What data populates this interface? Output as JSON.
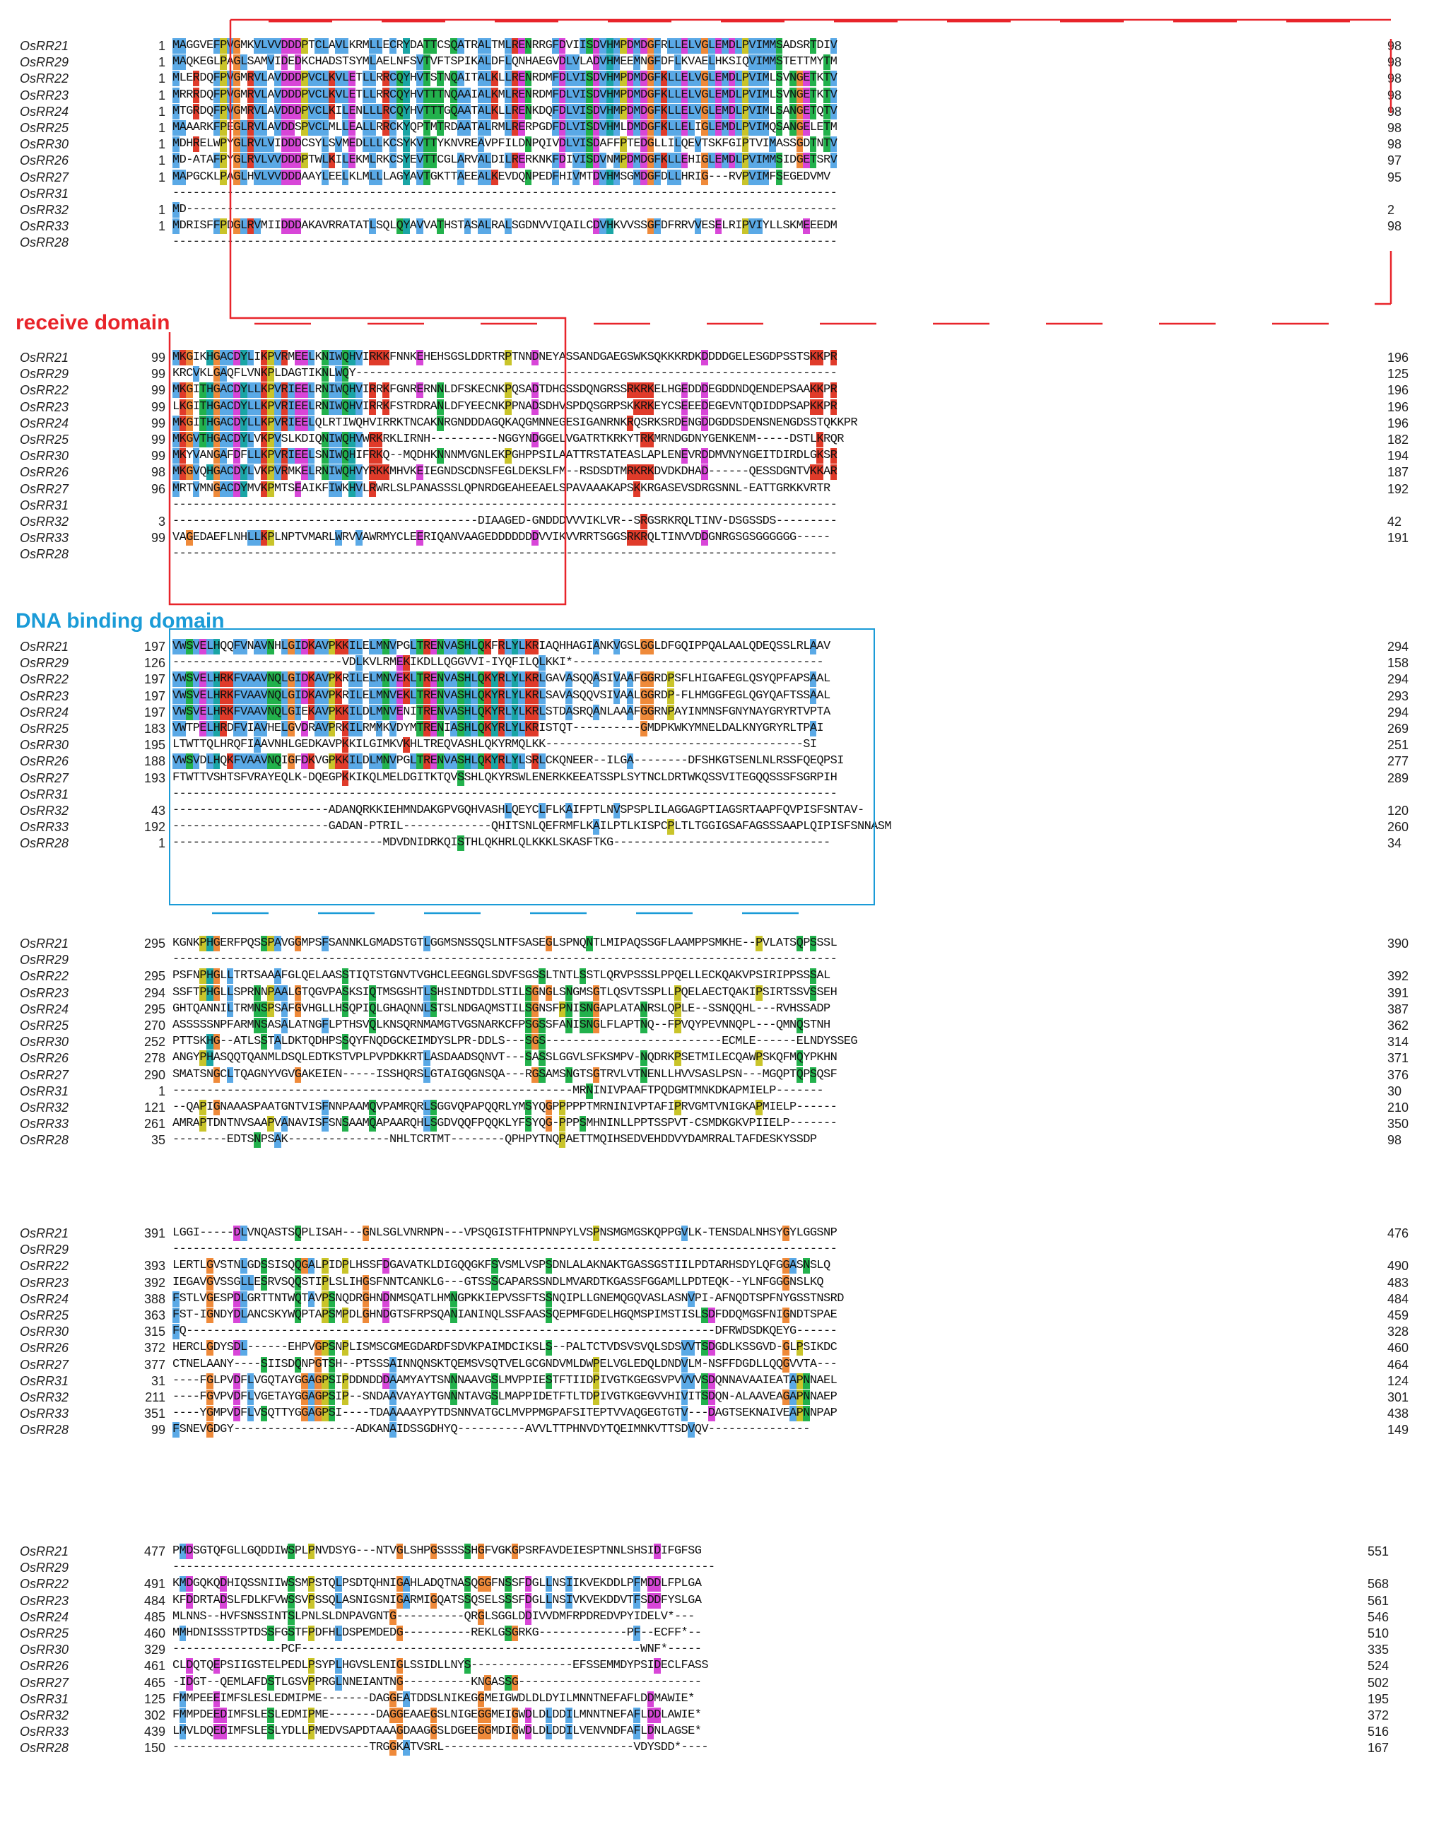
{
  "colors": {
    "receive_domain": "#e8242a",
    "dna_binding_domain": "#1a9bd7",
    "residue_blue": "#5aa9e6",
    "residue_red": "#e03b2a",
    "residue_orange": "#ef8a3a",
    "residue_green": "#22b14c",
    "residue_teal": "#1aa5a5",
    "residue_magenta": "#d846d8",
    "residue_yellow": "#c9c42a"
  },
  "labels": {
    "receive_domain": "receive domain",
    "dna_binding_domain": "DNA binding domain"
  },
  "blocks": [
    {
      "rows": [
        {
          "name": "OsRR21",
          "start": "1",
          "seq": "MAGGVEFPVGMKVLVVDDDPTCLAVLKRMLLECRYDATTCSQATRALTMLRENRRGFDVIISDVHMPDMDGFRLLELVGLEMDLPVIMMSADSRTDIV",
          "end": "98"
        },
        {
          "name": "OsRR29",
          "start": "1",
          "seq": "MAQKEGLPAGLSAMVIDEDKCHADSTSYMLAELNFSVTVFTSPIKALDFLQNHAEGVDLVLADVHMEEMNGFDFLKVAELHKSIQVIMMSTETTMYTM",
          "end": "98"
        },
        {
          "name": "OsRR22",
          "start": "1",
          "seq": "MLERDQFPVGMRVLAVDDDPVCLKVLETLLRRCQYHVTSTNQAITALKLLRENRDMFDLVISDVHMPDMDGFKLLELVGLEMDLPVIMLSVNGETKTV",
          "end": "98"
        },
        {
          "name": "OsRR23",
          "start": "1",
          "seq": "MRRRDQFPVGMRVLAVDDDPVCLKVLETLLRRCQYHVTTTNQAAIALKMLRENRDMFDLVISDVHMPDMDGFKLLELVGLEMDLPVIMLSVNGETKTV",
          "end": "98"
        },
        {
          "name": "OsRR24",
          "start": "1",
          "seq": "MTGRDQFPVGMRVLAVDDDPVCLKILENLLLRCQYHVTTTGQAATALKLLRENKDQFDLVISDVHMPDMDGFKLLELVGLEMDLPVIMLSANGETQTV",
          "end": "98"
        },
        {
          "name": "OsRR25",
          "start": "1",
          "seq": "MAAARKFPEGLRVLAVDDSPVCLMLLEALLRRCKYQPTMTRDAATALRMLRERPGDFDLVISDVHMLDMDGFKLLELIGLEMDLPVIMQSANGELETM",
          "end": "98"
        },
        {
          "name": "OsRR30",
          "start": "1",
          "seq": "MDHRELWPYGLRVLVIDDDCSYLSVMEDLLLKCSYKVTTYKNVREAVPFILDNPQIVDLVISDAFFPTEDGLLILQEVTSKFGIPTVIMASSGDTNTV",
          "end": "98"
        },
        {
          "name": "OsRR26",
          "start": "1",
          "seq": "MD-ATAFPYGLRVLVVDDDPTWLKILEKMLRKCSYEVTTCGLARVALDILRERKNKFDIVISDVNMPDMDGFKLLEHIGLEMDLPVIMMSIDGETSRV",
          "end": "97"
        },
        {
          "name": "OsRR27",
          "start": "1",
          "seq": "MAPGCKLPAGLHVLVVDDDAAYLEELKLMLLLAGYAVTGKTTAEEALKEVDQNPEDFHIVMTDVHMSGMDGFDLLHRIG---RVPVIMFSEGEDVMV",
          "end": "95"
        },
        {
          "name": "OsRR31",
          "start": "",
          "seq": "--------------------------------------------------------------------------------------------------",
          "end": ""
        },
        {
          "name": "OsRR32",
          "start": "1",
          "seq": "MD------------------------------------------------------------------------------------------------",
          "end": "2"
        },
        {
          "name": "OsRR33",
          "start": "1",
          "seq": "MDRISFFPDGLRVMIIDDDAKAVRRATATLSQLQYAVVATHSTASALRALSGDNVVIQAILCDVHKVVSSGFDFRRVVESELRIPVIYLLSKMEEEDM",
          "end": "98"
        },
        {
          "name": "OsRR28",
          "start": "",
          "seq": "--------------------------------------------------------------------------------------------------",
          "end": ""
        }
      ]
    },
    {
      "rows": [
        {
          "name": "OsRR21",
          "start": "99",
          "seq": "MKGIKHGACDYLIKPVRMEELKNIWQHVIRKKFNNKEHEHSGSLDDRTRPTNNDNEYASSANDGAEGSWKSQKKKRDKDDDDGELESGDPSSTSKKPR",
          "end": "196"
        },
        {
          "name": "OsRR29",
          "start": "99",
          "seq": "KRCVKLGAQFLVNKPLDAGTIKNLWQY-----------------------------------------------------------------------",
          "end": "125"
        },
        {
          "name": "OsRR22",
          "start": "99",
          "seq": "MKGITHGACDYLLKPVRIEELRNIWQHVIRRKFGNRERNNLDFSKECNKPQSADTDHGSSDQNGRSSRKRKELHGEDDDEGDDNDQENDEPSAAKKPR",
          "end": "196"
        },
        {
          "name": "OsRR23",
          "start": "99",
          "seq": "LKGITHGACDYLLKPVRIEELRNIWQHVIRRKFSTRDRANLDFYEECNKPPNADSDHVSPDQSGRPSKKRKEYCSEEEDEGEVNTQDIDDPSAPKKPR",
          "end": "196"
        },
        {
          "name": "OsRR24",
          "start": "99",
          "seq": "MKGITHGACDYLLKPVRIEELQLRTIWQHVIRRKTNCAKNRGNDDDAGQKAQGMNNEGESIGANRNKRQSRKSRDENGDDGDDSDENSNENGDSSTQKKPR",
          "end": "196"
        },
        {
          "name": "OsRR25",
          "start": "99",
          "seq": "MKGVTHGACDYLVKPVSLKDIQNIWQHVWRKRKLIRNH----------NGGYNDGGELVGATRTKRKYTRKMRNDGDNYGENKENM-----DSTLKRQR",
          "end": "182"
        },
        {
          "name": "OsRR30",
          "start": "99",
          "seq": "MKYVANGAFDFLLKPVRIEELSNIWQHIFRKQ--MQDHKNNNMVGNLEKPGHPPSILAATTRSTATEASLAPLENEVRDDMVNYNGEITDIRDLGKSR",
          "end": "194"
        },
        {
          "name": "OsRR26",
          "start": "98",
          "seq": "MKGVQHGACDYLVKPVRMKELRNIWQHVYRKKMHVKEIEGNDSCDNSFEGLDEKSLFM--RSDSDTMRKRKDVDKDHAD------QESSDGNTVKKAR",
          "end": "187"
        },
        {
          "name": "OsRR27",
          "start": "96",
          "seq": "MRTVMNGACDYMVKPMTSEAIKFIWKHVLRWRLSLPANASSSLQPNRDGEAHEEAELSPAVAAAKAPSKKRGASEVSDRGSNNL-EATTGRKKVRTR",
          "end": "192"
        },
        {
          "name": "OsRR31",
          "start": "",
          "seq": "--------------------------------------------------------------------------------------------------",
          "end": ""
        },
        {
          "name": "OsRR32",
          "start": "3",
          "seq": "---------------------------------------------DIAAGED-GNDDDVVVIKLVR--SRGSRKRQLTINV-DSGSSDS---------",
          "end": "42"
        },
        {
          "name": "OsRR33",
          "start": "99",
          "seq": "VAGEDAEFLNHLLKPLNPTVMARLWRVVAWRMYCLEERIQANVAAGEDDDDDDDVVIKVVRRTSGGSRKRQLTINVVDDGNRGSGSGGGGGG-----",
          "end": "191"
        },
        {
          "name": "OsRR28",
          "start": "",
          "seq": "--------------------------------------------------------------------------------------------------",
          "end": ""
        }
      ]
    },
    {
      "rows": [
        {
          "name": "OsRR21",
          "start": "197",
          "seq": "VWSVELHQQFVNAVNHLGIDKAVPKKILELMNVPGLTRENVASHLQKFRLYLKRIAQHHAGIANKVGSLGGLDFGQIPPQALAALQDEQSSLRLAAV",
          "end": "294"
        },
        {
          "name": "OsRR29",
          "start": "126",
          "seq": "-------------------------VDLKVLRMEKIKDLLQGGVVI-IYQFILQLKKI*-------------------------------------",
          "end": "158"
        },
        {
          "name": "OsRR22",
          "start": "197",
          "seq": "VWSVELHRKFVAAVNQLGIDKAVPKRILELMNVEKLTRENVASHLQKYRLYLKRLGAVASQQASIVAAFGGRDPSFLHIGAFEGLQSYQPFAPSAAL",
          "end": "294"
        },
        {
          "name": "OsRR23",
          "start": "197",
          "seq": "VWSVELHRKFVAAVNQLGIDKAVPKRILELMNVEKLTRENVASHLQKYRLYLKRLSAVASQQVSIVAALGGRDP-FLHMGGFEGLQGYQAFTSSAAL",
          "end": "293"
        },
        {
          "name": "OsRR24",
          "start": "197",
          "seq": "VWSVELHRKFVAAVNQLGIEKAVPKKILDLMNVENITRENVASHLQKYRLYLKRLSTDASRQANLAAAFGGRNPAYINMNSFGNYNAYGRYRTVPTA",
          "end": "294"
        },
        {
          "name": "OsRR25",
          "start": "183",
          "seq": "VWTPELHRDFVIAVHELGVDRAVPRKILRMMKVDYMTRENIASHLQKYRLYLKRISTQT----------GMDPKWKYMNELDALKNYGRYRLTPAI",
          "end": "269"
        },
        {
          "name": "OsRR30",
          "start": "195",
          "seq": "LTWTTQLHRQFIAAVNHLGEDKAVPKKILGIMKVKHLTREQVASHLQKYRMQLKK--------------------------------------SI",
          "end": "251"
        },
        {
          "name": "OsRR26",
          "start": "188",
          "seq": "VWSVDLHQKFVAAVNQIGFDKVGPKKILDLMNVPGLTRENVASHLQKYRLYLSRLCKQNEER--ILGA--------DFSHKGTSENLNLRSSFQEQPSI",
          "end": "277"
        },
        {
          "name": "OsRR27",
          "start": "193",
          "seq": "FTWTTVSHTSFVRAYEQLK-DQEGPKKIKQLMELDGITKTQVSSHLQKYRSWLENERKKEEATSSPLSYTNCLDRTWKQSSVITEGQQSSSFSGRPIH",
          "end": "289"
        },
        {
          "name": "OsRR31",
          "start": "",
          "seq": "--------------------------------------------------------------------------------------------------",
          "end": ""
        },
        {
          "name": "OsRR32",
          "start": "43",
          "seq": "-----------------------ADANQRKKIEHMNDAKGPVGQHVASHLQEYCLFLKAIFPTLNVSPSPLILAGGAGPTIAGSRTAAPFQVPISFSNTAV-",
          "end": "120"
        },
        {
          "name": "OsRR33",
          "start": "192",
          "seq": "-----------------------GADAN-PTRIL-------------QHITSNLQEFRMFLKAILPTLKISPCPLTLTGGIGSAFAGSSSAAPLQIPISFSNNASM",
          "end": "260"
        },
        {
          "name": "OsRR28",
          "start": "1",
          "seq": "-------------------------------MDVDNIDRKQISTHLQKHRLQLKKKLSKASFTKG--------------------------------",
          "end": "34"
        }
      ]
    },
    {
      "rows": [
        {
          "name": "OsRR21",
          "start": "295",
          "seq": "KGNKPHGERFPQSSPAVGGMPSFSANNKLGMADSTGTLGGMSNSSQSLNTFSASEGLSPNQNTLMIPAQSSGFLAAMPPSMKHE--PVLATSQPSSSL",
          "end": "390"
        },
        {
          "name": "OsRR29",
          "start": "",
          "seq": "--------------------------------------------------------------------------------------------------",
          "end": ""
        },
        {
          "name": "OsRR22",
          "start": "295",
          "seq": "PSFNPHGLLTRTSAAAFGLQELAASSTIQTSTGNVTVGHCLEEGNGLSDVFSGSSLTNTLSSTLQRVPSSSLPPQELLECKQAKVPSIRIPPSSSAL",
          "end": "392"
        },
        {
          "name": "OsRR23",
          "start": "294",
          "seq": "SSFTPHGLLSPRNNPAALGTQGVPASKSIQTMSGSHTLSHSINDTDDLSTILSGNGLSNGMSGTLQSVTSSPLLPQELAECTQAKIPSIRTSSVSSEH",
          "end": "391"
        },
        {
          "name": "OsRR24",
          "start": "295",
          "seq": "GHTQANNILTRMNSPSAFGVHGLLHSQPIQLGHAQNNLSTSLNDGAQMSTILSGNSFPNISNGAPLATANRSLQPLE--SSNQQHL---RVHSSADP",
          "end": "387"
        },
        {
          "name": "OsRR25",
          "start": "270",
          "seq": "ASSSSSNPFARMNSASALATNGFLPTHSVQLKNSQRNMAMGTVGSNARKCFPSGSSFANISNGLFLAPTNQ--FPVQYPEVNNQPL---QMNQSTNH",
          "end": "362"
        },
        {
          "name": "OsRR30",
          "start": "252",
          "seq": "PTTSKHG--ATLSSTALDKTQDHPSSQYFNQDGCKEIMDYSLPR-DDLS---SGS--------------------------ECMLE------ELNDYSSEG",
          "end": "314"
        },
        {
          "name": "OsRR26",
          "start": "278",
          "seq": "ANGYPHASQQTQANMLDSQLEDTKSTVPLPVPDKKRTLASDAADSQNVT---SASSLGGVLSFKSMPV-NQDRKPSETMILECQAWPSKQFMQYPKHN",
          "end": "371"
        },
        {
          "name": "OsRR27",
          "start": "290",
          "seq": "SMATSNGCLTQAGNYVGVGAKEIEN-----ISSHQRSLGTAIGQGNSQA---RGSAMSNGTSGTRVLVTNENLLHVVSASLPSN---MGQPTQPSQSF",
          "end": "376"
        },
        {
          "name": "OsRR31",
          "start": "1",
          "seq": "-----------------------------------------------------------MRNINIVPAAFTPQDGMTMNKDKAPMIELP-------",
          "end": "30"
        },
        {
          "name": "OsRR32",
          "start": "121",
          "seq": "--QAPIGNAAASPAATGNTVISFNNPAAMQVPAMRQRLSGGVQPAPQQRLYMSYQGPPPPPTMRNINIVPTAFIPRVGMTVNIGKAPMIELP------",
          "end": "210"
        },
        {
          "name": "OsRR33",
          "start": "261",
          "seq": "AMRAPTDNTNVSAAPVANAVISFSNSAAMQAPAARQHLSGDVQQFPQQKLYFSYQG-PPPSMHNINLLPPTSSPVT-CSMDKGKVPIIELP-------",
          "end": "350"
        },
        {
          "name": "OsRR28",
          "start": "35",
          "seq": "--------EDTSNPSAK---------------NHLTCRTMT--------QPHPYTNQPAETTMQIHSEDVEHDDVYDAMRRALTAFDESKYSSDP",
          "end": "98"
        }
      ]
    },
    {
      "rows": [
        {
          "name": "OsRR21",
          "start": "391",
          "seq": "LGGI-----DLVNQASTSQPLISAH---GNLSGLVNRNPN---VPSQGISTFHTPNNPYLVSPNSMGMGSKQPPGVLK-TENSDALNHSYGYLGGSNP",
          "end": "476"
        },
        {
          "name": "OsRR29",
          "start": "",
          "seq": "--------------------------------------------------------------------------------------------------",
          "end": ""
        },
        {
          "name": "OsRR22",
          "start": "393",
          "seq": "LERTLGVSTNLGDSSISQQGALPIDPLHSSFDGAVATKLDIGQQGKFSVSMLVSPSDNLALAKNAKTGASSGSTIILPDTARHSDYLQFGGASNSLQ",
          "end": "490"
        },
        {
          "name": "OsRR23",
          "start": "392",
          "seq": "IEGAVGVSSGLLESRVSQQSTIPLSLIHGSFNNTCANKLG---GTSSSCAPARSSNDLMVARDTKGASSFGGAMLLPDTEQK--YLNFGGGNSLKQ",
          "end": "483"
        },
        {
          "name": "OsRR24",
          "start": "388",
          "seq": "FSTLVGESPDLGRTTNTWQTAVPSNQDRGHNDNMSQATLHMNGPKKIEPVSSFTSSNQIPLLGNEMQGQVASLASNVPI-AFNQDTSPFNYGSSTNSRD",
          "end": "484"
        },
        {
          "name": "OsRR25",
          "start": "363",
          "seq": "FST-IGNDYDLANCSKYWQPTAPSMPDLGHNDGTSFRPSQANIANINQLSSFAASSQEPMFGDELHGQMSPIMSTISLSDFDDQMGSFNIGNDTSPAE",
          "end": "459"
        },
        {
          "name": "OsRR30",
          "start": "315",
          "seq": "FQ------------------------------------------------------------------------------DFRWDSDKQEYG------",
          "end": "328"
        },
        {
          "name": "OsRR26",
          "start": "372",
          "seq": "HERCLGDYSDL------EHPVGPSNPLISMSCGMEGDARDFSDVKPAIMDCIKSLS--PALTCTVDSVSVQLSDSVVTSDGDLKSSGVD-GLPSIKDC",
          "end": "460"
        },
        {
          "name": "OsRR27",
          "start": "377",
          "seq": "CTNELAANY----SIISDQNPGTSH--PTSSSAINNQNSKTQEMSVSQTVELGCGNDVMLDWPELVGLEDQLDNDVLM-NSFFDGDLLQQGVVTA---",
          "end": "464"
        },
        {
          "name": "OsRR31",
          "start": "31",
          "seq": "----FGLPVDFLVGQTAYGGAGPSIPDDNDDDAAMYAYTSNNNAAVGSLMVPPIESTFTIIDPIVGTKGEGSVPVVVVSDQNNAVAAIEATAPNNAEL",
          "end": "124"
        },
        {
          "name": "OsRR32",
          "start": "211",
          "seq": "----FGVPVDFLVGETAYGGAGPSIP--SNDAAVAYAYTGNNNTAVGSLMAPPIDETFTLTDPIVGTKGEGVVHIVITSDQN-ALAAVEAGAPNNAEP",
          "end": "301"
        },
        {
          "name": "OsRR33",
          "start": "351",
          "seq": "----YGMPVDFLVSQTTYGGAGPSI----TDAAAAAYPYTDSNNVATGCLMVPPMGPAFSITEPTVVAQGEGTGTV---DAGTSEKNAIVEAPNNPAP",
          "end": "438"
        },
        {
          "name": "OsRR28",
          "start": "99",
          "seq": "FSNEVGDGY------------------ADKANAIDSSGDHYQ----------AVVLTTPHNVDYTQEIMNKVTTSDVQV---------------",
          "end": "149"
        }
      ]
    },
    {
      "rows": [
        {
          "name": "OsRR21",
          "start": "477",
          "seq": "PMDSGTQFGLLGQDDIWSPLPNVDSYG---NTVGLSHPGSSSSSHGFVGKGPSRFAVDEIESPTNNLSHSIDIFGFSG",
          "end": "551"
        },
        {
          "name": "OsRR29",
          "start": "",
          "seq": "--------------------------------------------------------------------------------",
          "end": ""
        },
        {
          "name": "OsRR22",
          "start": "491",
          "seq": "KMDGQKQDHIQSSNIIWSSMPSTQLPSDTQHNIGAHLADQTNASQGGFNSSFDGLLNSIIKVEKDDLPFMDDLFPLGA",
          "end": "568"
        },
        {
          "name": "OsRR23",
          "start": "484",
          "seq": "KFDDRTADSLFDLKFVWSSVPSSQLASNIGSNIGARMIGQATSSQSELSSSFDGLLNSIVKVEKDDVTFSDDFYSLGA",
          "end": "561"
        },
        {
          "name": "OsRR24",
          "start": "485",
          "seq": "MLNNS--HVFSNSSINTSLPNLSLDNPAVGNTG----------QRGLSGGLDDIVVDMFRPDREDVPYIDELV*---",
          "end": "546"
        },
        {
          "name": "OsRR25",
          "start": "460",
          "seq": "MMHDNISSSTPTDSSFGSTFPDFHLDSPEMDEDG----------REKLGSGRKG-------------PF--ECFF*--",
          "end": "510"
        },
        {
          "name": "OsRR30",
          "start": "329",
          "seq": "----------------PCF--------------------------------------------------WNF*-----",
          "end": "335"
        },
        {
          "name": "OsRR26",
          "start": "461",
          "seq": "CLDQTQEPSIIGSTELPEDLPSYPLHGVSLENIGLSSIDLLNYS---------------EFSSEMMDYPSIDECLFASS",
          "end": "524"
        },
        {
          "name": "OsRR27",
          "start": "465",
          "seq": "-IDGT--QEMLAFDSTLGSVPPRGLNNEIANTNG----------KNGASSG---------------------------",
          "end": "502"
        },
        {
          "name": "OsRR31",
          "start": "125",
          "seq": "FMMPEEEIMFSLESLEDMIPME-------DAGGEATDDSLNIKEGGMEIGWDLDLDYILMNNTNEFAFLDDMAWIE*",
          "end": "195"
        },
        {
          "name": "OsRR32",
          "start": "302",
          "seq": "FMMPDEEDIMFSLESLEDMIPME-------DAGGEAAEGSLNIGEGGMEIGWDLDLDDILMNNTNEFAFLDDLAWIE*",
          "end": "372"
        },
        {
          "name": "OsRR33",
          "start": "439",
          "seq": "LMVLDQEDIMFSLESLYDLLPMEDVSAPDTAAAGDAAGGSLDGEEGGMDIGWDLDLDDILVENVNDFAFLDNLAGSE*",
          "end": "516"
        },
        {
          "name": "OsRR28",
          "start": "150",
          "seq": "-----------------------------TRGGKATVSRL----------------------------VDYSDD*----",
          "end": "167"
        }
      ]
    }
  ]
}
